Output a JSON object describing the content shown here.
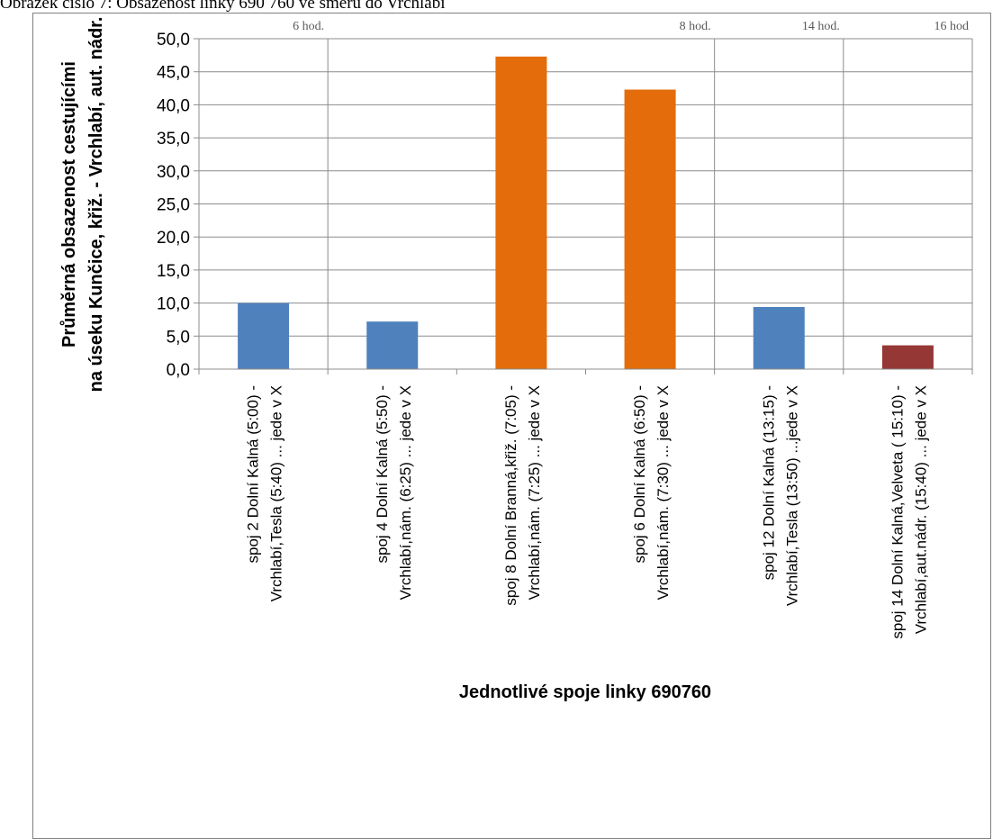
{
  "caption": "Obrázek číslo 7: Obsazenost linky 690 760 ve směru do Vrchlabí",
  "chart_data": {
    "type": "bar",
    "categories": [
      [
        "spoj 2 Dolní Kalná (5:00) -",
        "Vrchlabí,Tesla (5:40) ... jede v X"
      ],
      [
        "spoj 4 Dolní Kalná (5:50) -",
        "Vrchlabí,nám. (6:25) ... jede v X"
      ],
      [
        "spoj 8 Dolní Branná,křiž. (7:05) -",
        "Vrchlabí,nám. (7:25) ... jede v X"
      ],
      [
        "spoj 6 Dolní Kalná (6:50) -",
        "Vrchlabí,nám. (7:30) ... jede v X"
      ],
      [
        "spoj 12 Dolní Kalná (13:15) -",
        "Vrchlabí,Tesla (13:50) ...jede v X"
      ],
      [
        "spoj 14 Dolní Kalná,Velveta ( 15:10) -",
        "Vrchlabí,aut.nádr. (15:40) ... jede v X"
      ]
    ],
    "values": [
      10.0,
      7.2,
      47.3,
      42.3,
      9.4,
      3.6
    ],
    "colors": [
      "#4f81bd",
      "#4f81bd",
      "#e46c0a",
      "#e46c0a",
      "#4f81bd",
      "#953735"
    ],
    "ylabel": [
      "Průměrná obsazenost  cestujícími",
      "na úseku Kunčice,  křiž. - Vrchlabí,  aut. nádr."
    ],
    "xlabel": "Jednotlivé spoje linky 690760",
    "ylim": [
      0,
      50
    ],
    "ytick_step": 5,
    "ytick_labels": [
      "0,0",
      "5,0",
      "10,0",
      "15,0",
      "20,0",
      "25,0",
      "30,0",
      "35,0",
      "40,0",
      "45,0",
      "50,0"
    ],
    "grid": true,
    "hour_markers": [
      {
        "label": "6 hod.",
        "after_index": 0
      },
      {
        "label": "8 hod.",
        "after_index": 3
      },
      {
        "label": "14 hod.",
        "after_index": 4
      },
      {
        "label": "16 hod",
        "after_index": 5
      }
    ]
  }
}
